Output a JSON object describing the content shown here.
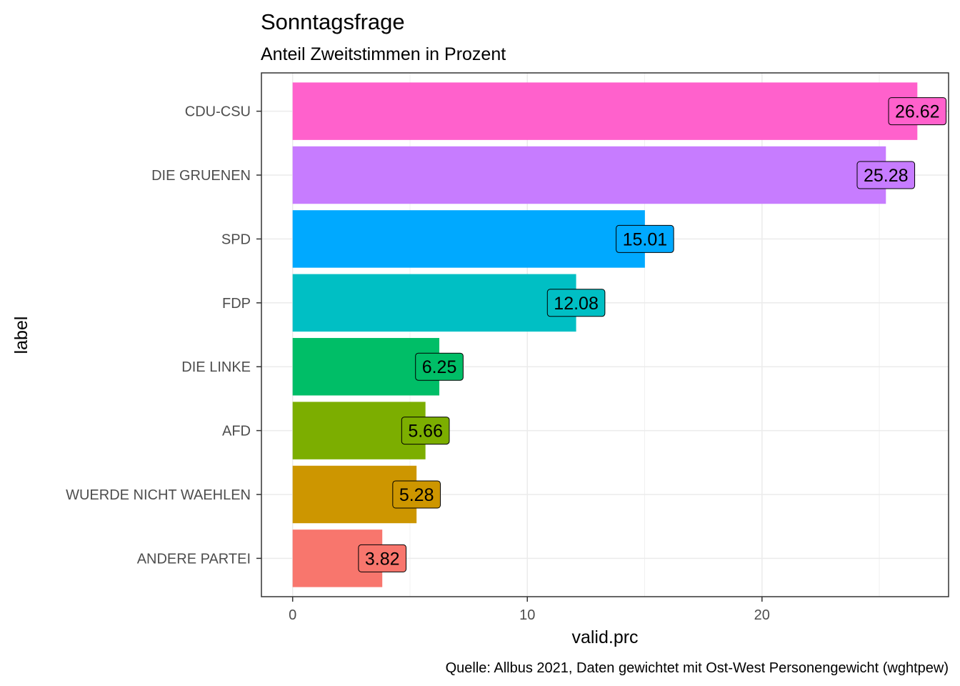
{
  "chart_data": {
    "type": "bar",
    "orientation": "horizontal",
    "title": "Sonntagsfrage",
    "subtitle": "Anteil Zweitstimmen in Prozent",
    "caption": "Quelle: Allbus 2021, Daten gewichtet mit Ost-West Personengewicht (wghtpew)",
    "xlabel": "valid.prc",
    "ylabel": "label",
    "xlim": [
      -1.33,
      27.95
    ],
    "xticks": [
      0,
      10,
      20
    ],
    "grid": true,
    "legend": "none",
    "categories": [
      "CDU-CSU",
      "DIE GRUENEN",
      "SPD",
      "FDP",
      "DIE LINKE",
      "AFD",
      "WUERDE NICHT WAEHLEN",
      "ANDERE PARTEI"
    ],
    "values": [
      26.62,
      25.28,
      15.01,
      12.08,
      6.25,
      5.66,
      5.28,
      3.82
    ],
    "data_labels": [
      "26.62",
      "25.28",
      "15.01",
      "12.08",
      "6.25",
      "5.66",
      "5.28",
      "3.82"
    ],
    "colors": [
      "#FF61CC",
      "#C77CFF",
      "#00A9FF",
      "#00BFC4",
      "#00BE67",
      "#7CAE00",
      "#CD9600",
      "#F8766D"
    ]
  }
}
